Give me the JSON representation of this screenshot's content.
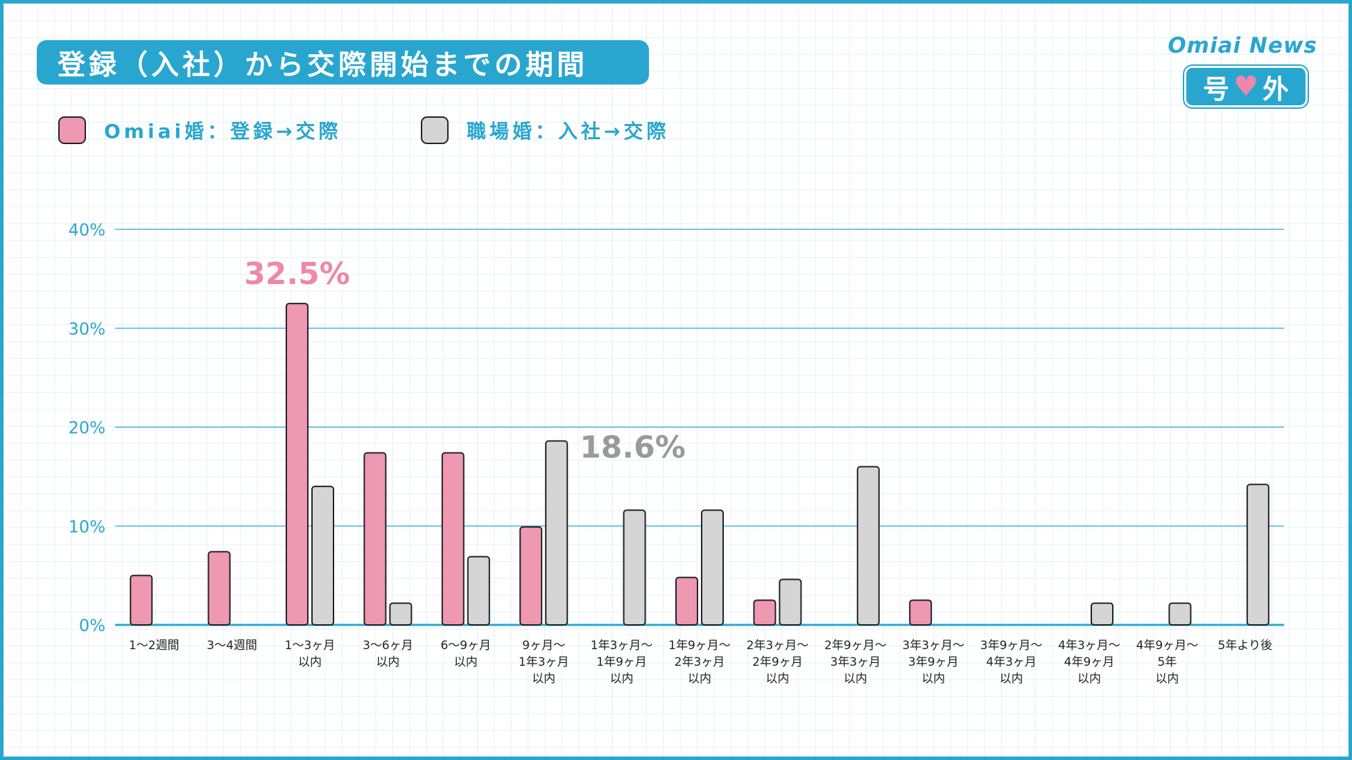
{
  "header": {
    "title": "登録（入社）から交際開始までの期間",
    "brand": "Omiai News",
    "issue": {
      "left": "号",
      "right": "外"
    }
  },
  "legend": [
    {
      "label": "Omiai婚：登録→交際",
      "color": "#ee98b1"
    },
    {
      "label": "職場婚：入社→交際",
      "color": "#d5d5d5"
    }
  ],
  "colors": {
    "accent": "#29a6cf",
    "pink": "#ee98b1",
    "gray": "#d5d5d5",
    "pink_text": "#ee88ab",
    "gray_text": "#9a9a9a"
  },
  "chart_data": {
    "type": "bar",
    "ylim": [
      0,
      40
    ],
    "yticks": [
      {
        "value": 0,
        "label": "0%"
      },
      {
        "value": 10,
        "label": "10%"
      },
      {
        "value": 20,
        "label": "20%"
      },
      {
        "value": 30,
        "label": "30%"
      },
      {
        "value": 40,
        "label": "40%"
      }
    ],
    "categories": [
      [
        "1～2週間"
      ],
      [
        "3～4週間"
      ],
      [
        "1～3ヶ月",
        "以内"
      ],
      [
        "3～6ヶ月",
        "以内"
      ],
      [
        "6～9ヶ月",
        "以内"
      ],
      [
        "9ヶ月～",
        "1年3ヶ月",
        "以内"
      ],
      [
        "1年3ヶ月～",
        "1年9ヶ月",
        "以内"
      ],
      [
        "1年9ヶ月～",
        "2年3ヶ月",
        "以内"
      ],
      [
        "2年3ヶ月～",
        "2年9ヶ月",
        "以内"
      ],
      [
        "2年9ヶ月～",
        "3年3ヶ月",
        "以内"
      ],
      [
        "3年3ヶ月～",
        "3年9ヶ月",
        "以内"
      ],
      [
        "3年9ヶ月～",
        "4年3ヶ月",
        "以内"
      ],
      [
        "4年3ヶ月～",
        "4年9ヶ月",
        "以内"
      ],
      [
        "4年9ヶ月～",
        "5年",
        "以内"
      ],
      [
        "5年より後"
      ]
    ],
    "series": [
      {
        "name": "Omiai婚：登録→交際",
        "color": "#ee98b1",
        "values": [
          5.0,
          7.4,
          32.5,
          17.4,
          17.4,
          9.9,
          0,
          4.8,
          2.5,
          0,
          2.5,
          0,
          0,
          0,
          0
        ]
      },
      {
        "name": "職場婚：入社→交際",
        "color": "#d5d5d5",
        "values": [
          0,
          0,
          14.0,
          2.2,
          6.9,
          18.6,
          11.6,
          11.6,
          4.6,
          16.0,
          0,
          0,
          2.2,
          2.2,
          14.2
        ]
      }
    ],
    "annotations": [
      {
        "text": "32.5%",
        "series": 0,
        "index": 2,
        "color": "#ee88ab"
      },
      {
        "text": "18.6%",
        "series": 1,
        "index": 5,
        "color": "#9a9a9a"
      }
    ]
  }
}
